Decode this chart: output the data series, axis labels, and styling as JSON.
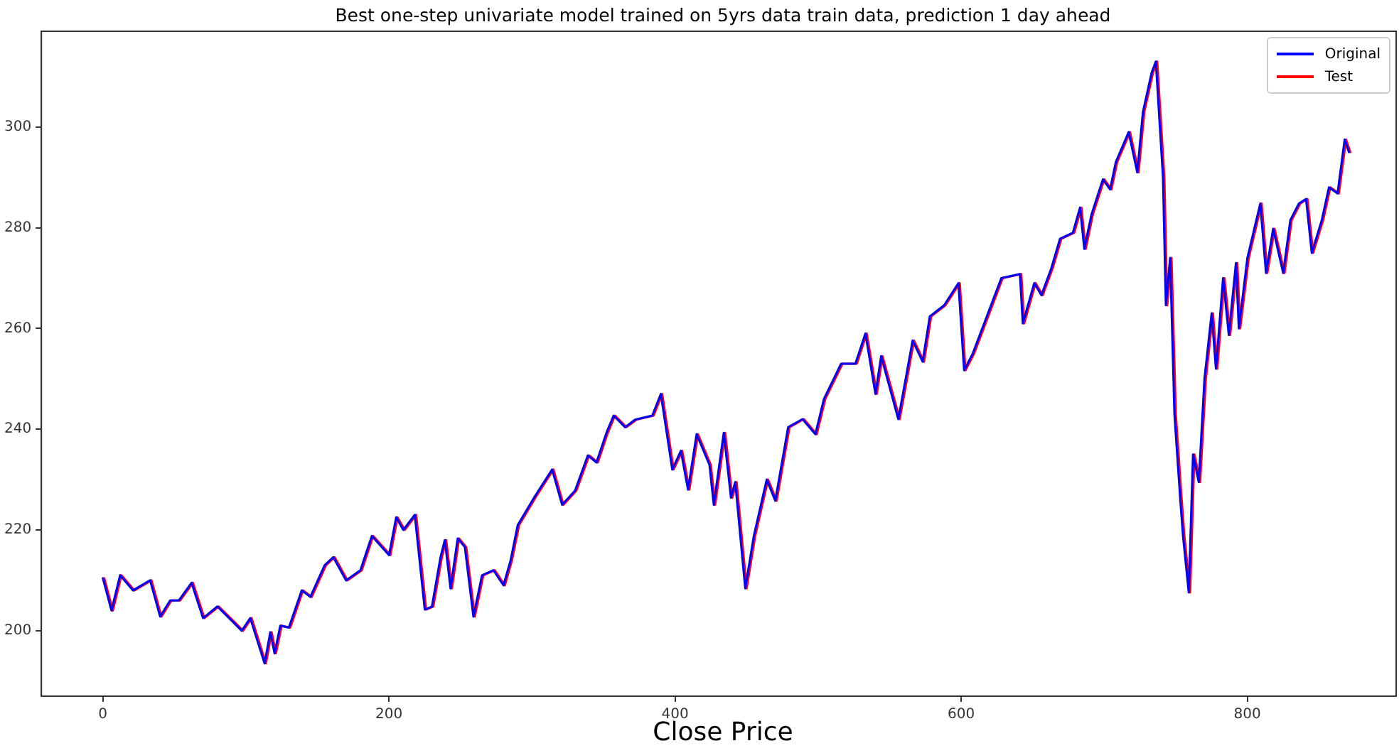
{
  "chart_data": {
    "type": "line",
    "title": "Best one-step univariate model trained on 5yrs data train data, prediction 1 day ahead",
    "xlabel": "Close Price",
    "xlim": [
      -43,
      904
    ],
    "xticks": [
      0,
      200,
      400,
      600,
      800
    ],
    "ylim": [
      187,
      319
    ],
    "yticks": [
      200,
      220,
      240,
      260,
      280,
      300
    ],
    "grid": false,
    "legend": "top right",
    "marker": "none",
    "line_style": "solid",
    "series": [
      {
        "name": "Original",
        "color": "#0000ff",
        "x": [
          0,
          6,
          12,
          21,
          33,
          40,
          47,
          53,
          62,
          70,
          80,
          90,
          97,
          103,
          113,
          117,
          120,
          124,
          130,
          139,
          145,
          155,
          161,
          170,
          180,
          188,
          200,
          205,
          210,
          218,
          225,
          230,
          236,
          239,
          243,
          248,
          253,
          259,
          265,
          273,
          280,
          285,
          290,
          302,
          314,
          321,
          330,
          339,
          345,
          352,
          357,
          365,
          372,
          384,
          390,
          398,
          404,
          409,
          415,
          424,
          427,
          434,
          439,
          442,
          449,
          455,
          464,
          470,
          479,
          489,
          498,
          504,
          516,
          526,
          533,
          540,
          544,
          556,
          566,
          573,
          578,
          588,
          598,
          602,
          608,
          616,
          628,
          641,
          643,
          651,
          656,
          663,
          669,
          678,
          683,
          686,
          691,
          699,
          704,
          708,
          717,
          723,
          727,
          733,
          736,
          741,
          743,
          746,
          749,
          753,
          755,
          759,
          762,
          766,
          770,
          775,
          778,
          783,
          787,
          792,
          794,
          800,
          809,
          813,
          818,
          825,
          830,
          836,
          841,
          845,
          852,
          857,
          863,
          868,
          871
        ],
        "values": [
          210.4,
          204,
          211,
          208,
          210,
          202.8,
          206,
          206,
          209.5,
          202.5,
          204.8,
          202,
          200,
          202.5,
          193.5,
          199.7,
          195.5,
          201,
          200.6,
          208,
          206.7,
          213,
          214.6,
          210,
          212,
          218.8,
          215,
          222.5,
          220,
          223,
          204.2,
          204.8,
          214.6,
          218,
          208.4,
          218.3,
          216.6,
          202.8,
          211,
          212,
          209,
          214,
          221,
          226.7,
          232,
          225,
          227.8,
          234.8,
          233.4,
          239.3,
          242.7,
          240.4,
          241.9,
          242.7,
          247,
          232,
          235.7,
          228,
          239,
          232.9,
          225,
          239.3,
          226.4,
          229.5,
          208.4,
          218.8,
          230,
          225.8,
          240.4,
          242,
          239,
          246,
          253,
          253,
          259,
          247,
          254.5,
          242,
          257.6,
          253.4,
          262.4,
          264.6,
          269,
          251.7,
          255,
          261,
          270,
          270.8,
          261,
          269,
          266.6,
          272,
          277.8,
          279,
          284,
          275.8,
          282.6,
          289.6,
          287.6,
          293,
          299,
          291,
          303,
          310.7,
          313,
          290,
          264.6,
          274,
          243,
          226.4,
          218.8,
          207.6,
          235,
          229.5,
          250,
          263,
          252,
          270,
          258.7,
          273,
          260,
          274,
          284.8,
          271,
          279.8,
          271,
          281.5,
          284.8,
          285.7,
          275,
          281.5,
          288,
          286.8,
          297.5,
          295
        ]
      },
      {
        "name": "Test",
        "color": "#ff0000",
        "x": [
          1,
          7,
          13,
          22,
          34,
          41,
          48,
          54,
          63,
          71,
          81,
          91,
          98,
          104,
          114,
          118,
          121,
          125,
          131,
          140,
          146,
          156,
          162,
          171,
          181,
          189,
          201,
          206,
          211,
          219,
          226,
          231,
          237,
          240,
          244,
          249,
          254,
          260,
          266,
          274,
          281,
          286,
          291,
          303,
          315,
          322,
          331,
          340,
          346,
          353,
          358,
          366,
          373,
          385,
          391,
          399,
          405,
          410,
          416,
          425,
          428,
          435,
          440,
          443,
          450,
          456,
          465,
          471,
          480,
          490,
          499,
          505,
          517,
          527,
          534,
          541,
          545,
          557,
          567,
          574,
          579,
          589,
          599,
          603,
          609,
          617,
          629,
          642,
          644,
          652,
          657,
          664,
          670,
          679,
          684,
          687,
          692,
          700,
          705,
          709,
          718,
          724,
          728,
          734,
          737,
          742,
          744,
          747,
          750,
          754,
          756,
          760,
          763,
          767,
          771,
          776,
          779,
          784,
          788,
          793,
          795,
          801,
          810,
          814,
          819,
          826,
          831,
          837,
          842,
          846,
          853,
          858,
          864,
          869,
          872
        ],
        "values": [
          210.4,
          204,
          211,
          208,
          210,
          202.8,
          206,
          206,
          209.5,
          202.5,
          204.8,
          202,
          200,
          202.5,
          193.5,
          199.7,
          195.5,
          201,
          200.6,
          208,
          206.7,
          213,
          214.6,
          210,
          212,
          218.8,
          215,
          222.5,
          220,
          223,
          204.2,
          204.8,
          214.6,
          218,
          208.4,
          218.3,
          216.6,
          202.8,
          211,
          212,
          209,
          214,
          221,
          226.7,
          232,
          225,
          227.8,
          234.8,
          233.4,
          239.3,
          242.7,
          240.4,
          241.9,
          242.7,
          247,
          232,
          235.7,
          228,
          239,
          232.9,
          225,
          239.3,
          226.4,
          229.5,
          208.4,
          218.8,
          230,
          225.8,
          240.4,
          242,
          239,
          246,
          253,
          253,
          259,
          247,
          254.5,
          242,
          257.6,
          253.4,
          262.4,
          264.6,
          269,
          251.7,
          255,
          261,
          270,
          270.8,
          261,
          269,
          266.6,
          272,
          277.8,
          279,
          284,
          275.8,
          282.6,
          289.6,
          287.6,
          293,
          299,
          291,
          303,
          310.7,
          313,
          290,
          264.6,
          274,
          243,
          226.4,
          218.8,
          207.6,
          235,
          229.5,
          250,
          263,
          252,
          270,
          258.7,
          273,
          260,
          274,
          284.8,
          271,
          279.8,
          271,
          281.5,
          284.8,
          285.7,
          275,
          281.5,
          288,
          286.8,
          297.5,
          295
        ]
      }
    ]
  }
}
